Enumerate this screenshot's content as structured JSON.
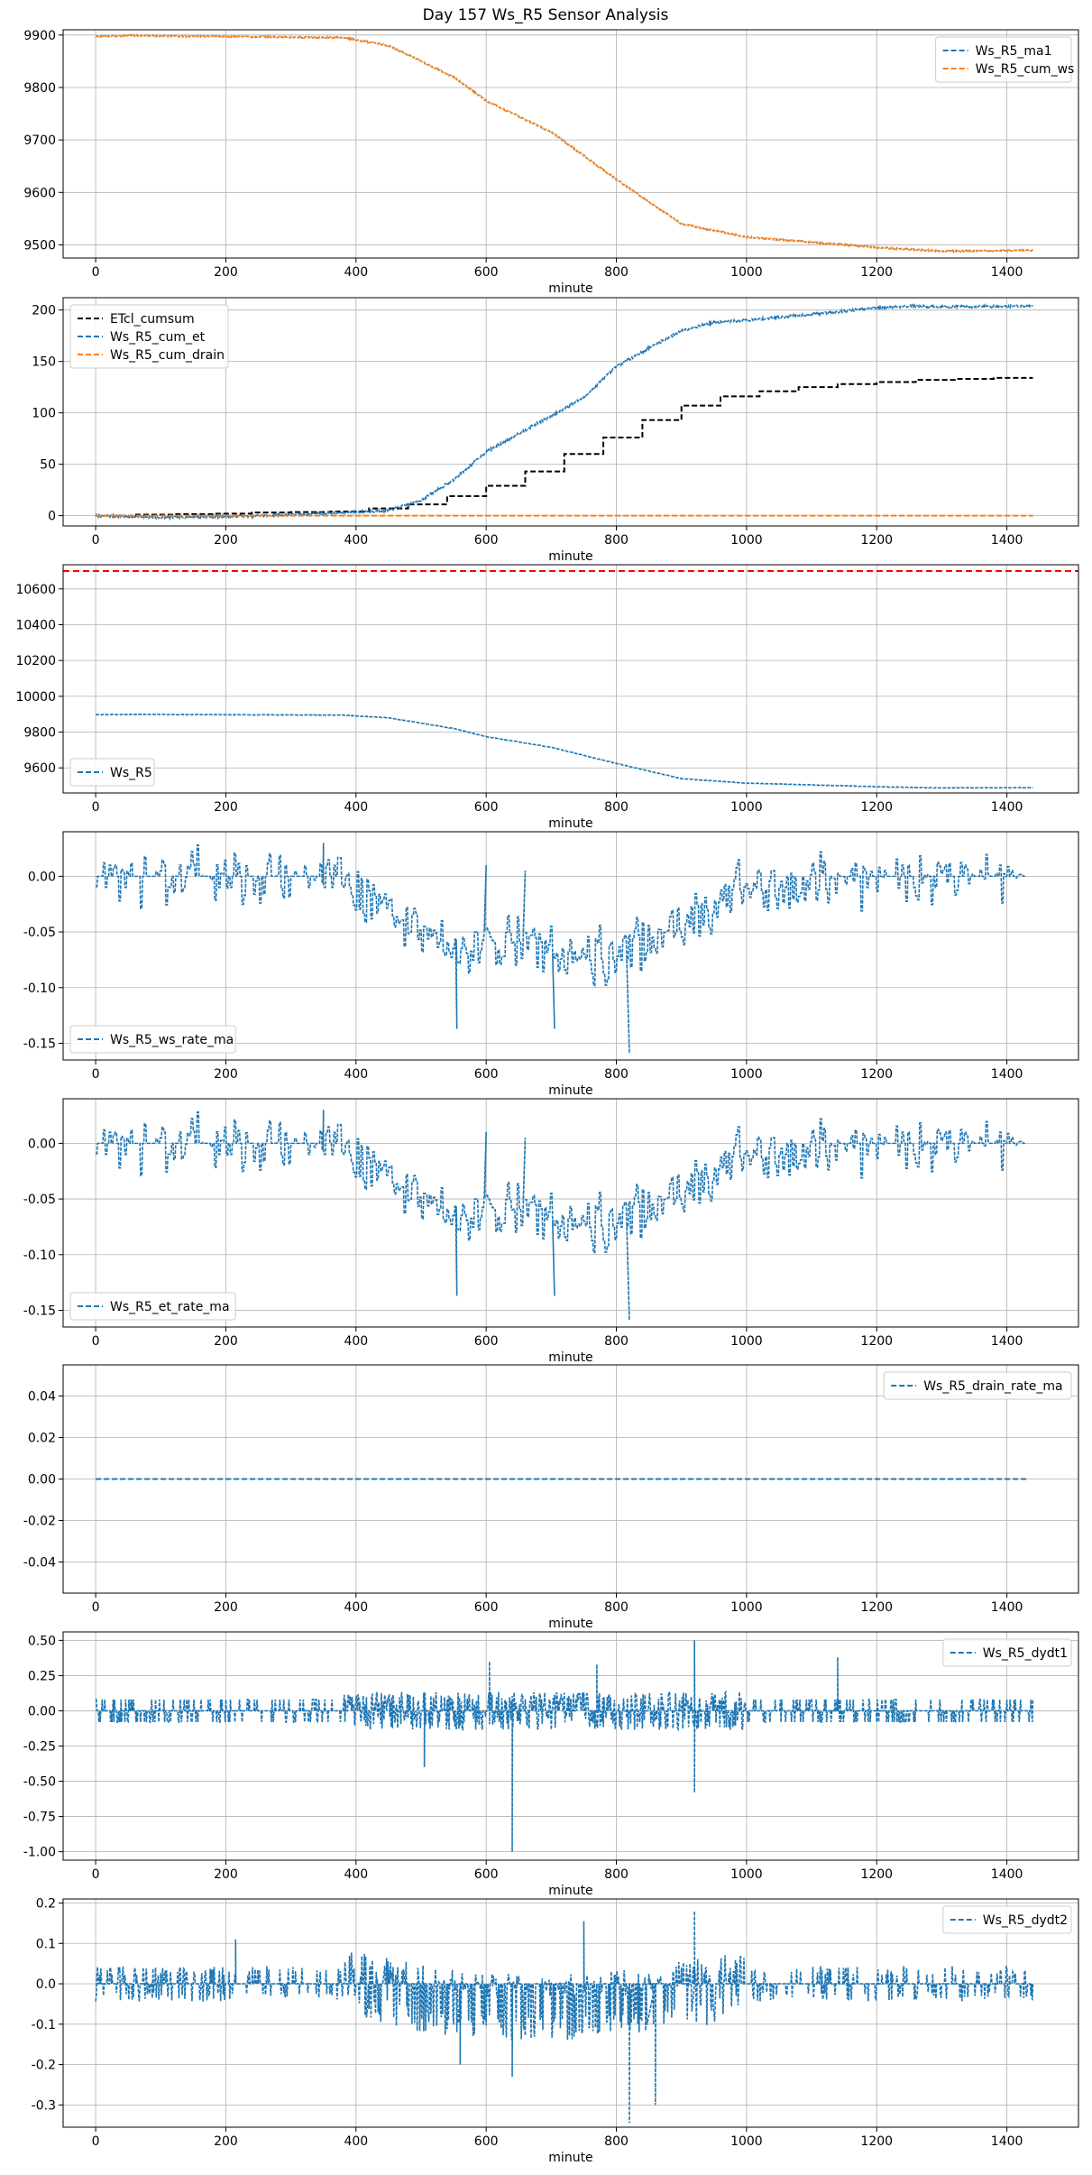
{
  "figure": {
    "title": "Day 157 Ws_R5 Sensor Analysis"
  },
  "colors": {
    "blue": "#1f77b4",
    "orange": "#ff7f0e",
    "black": "#000000",
    "red": "#ff0000",
    "grid": "#b0b0b0"
  },
  "chart_data": [
    {
      "type": "line",
      "xlabel": "minute",
      "ylabel": "",
      "xlim": [
        -50,
        1510
      ],
      "ylim": [
        9475,
        9910
      ],
      "xticks": [
        0,
        200,
        400,
        600,
        800,
        1000,
        1200,
        1400
      ],
      "yticks": [
        9500,
        9600,
        9700,
        9800,
        9900
      ],
      "grid": true,
      "legend": "upper-right",
      "series": [
        {
          "name": "Ws_R5_ma1",
          "color": "#1f77b4",
          "style": "dashed",
          "generator": "ws",
          "x": [
            0,
            50,
            200,
            380,
            450,
            550,
            600,
            700,
            800,
            900,
            1000,
            1100,
            1200,
            1300,
            1440
          ],
          "y": [
            9897,
            9899,
            9897,
            9895,
            9880,
            9820,
            9775,
            9715,
            9625,
            9540,
            9515,
            9505,
            9495,
            9488,
            9490
          ]
        },
        {
          "name": "Ws_R5_cum_ws",
          "color": "#ff7f0e",
          "style": "dashed",
          "generator": "ws",
          "x": [
            0,
            50,
            200,
            380,
            450,
            550,
            600,
            700,
            800,
            900,
            1000,
            1100,
            1200,
            1300,
            1440
          ],
          "y": [
            9897,
            9899,
            9897,
            9895,
            9880,
            9820,
            9775,
            9715,
            9625,
            9540,
            9515,
            9505,
            9495,
            9488,
            9490
          ]
        }
      ]
    },
    {
      "type": "line",
      "xlabel": "minute",
      "ylabel": "",
      "xlim": [
        -50,
        1510
      ],
      "ylim": [
        -10,
        212
      ],
      "xticks": [
        0,
        200,
        400,
        600,
        800,
        1000,
        1200,
        1400
      ],
      "yticks": [
        0,
        50,
        100,
        150,
        200
      ],
      "grid": true,
      "legend": "upper-left",
      "series": [
        {
          "name": "ETcl_cumsum",
          "color": "#000000",
          "style": "dashed",
          "generator": "steps",
          "x": [
            0,
            60,
            120,
            180,
            240,
            300,
            360,
            420,
            480,
            540,
            600,
            660,
            720,
            780,
            840,
            900,
            960,
            1020,
            1080,
            1140,
            1200,
            1260,
            1320,
            1380,
            1440
          ],
          "y": [
            0,
            1,
            1.5,
            2,
            3,
            3.5,
            4,
            7,
            11,
            19,
            29,
            43,
            60,
            76,
            93,
            107,
            116,
            121,
            125,
            128,
            130,
            132,
            133,
            134,
            134
          ]
        },
        {
          "name": "Ws_R5_cum_et",
          "color": "#1f77b4",
          "style": "dashed",
          "generator": "noisy",
          "x": [
            0,
            100,
            250,
            380,
            450,
            500,
            550,
            600,
            650,
            700,
            750,
            800,
            850,
            900,
            950,
            1000,
            1100,
            1200,
            1250,
            1300,
            1440
          ],
          "y": [
            0,
            -2,
            0,
            3,
            5,
            15,
            35,
            62,
            80,
            97,
            115,
            145,
            163,
            180,
            188,
            190,
            196,
            202,
            204,
            203,
            204
          ]
        },
        {
          "name": "Ws_R5_cum_drain",
          "color": "#ff7f0e",
          "style": "dashed",
          "generator": "line",
          "x": [
            0,
            1440
          ],
          "y": [
            0,
            0
          ]
        }
      ]
    },
    {
      "type": "line",
      "xlabel": "minute",
      "ylabel": "",
      "xlim": [
        -50,
        1510
      ],
      "ylim": [
        9460,
        10735
      ],
      "xticks": [
        0,
        200,
        400,
        600,
        800,
        1000,
        1200,
        1400
      ],
      "yticks": [
        9600,
        9800,
        10000,
        10200,
        10400,
        10600
      ],
      "grid": true,
      "legend": "lower-left",
      "hline": {
        "y": 10700,
        "color": "#ff0000",
        "style": "dashed"
      },
      "series": [
        {
          "name": "Ws_R5",
          "color": "#1f77b4",
          "style": "dashed",
          "generator": "ws",
          "x": [
            0,
            50,
            200,
            380,
            450,
            550,
            600,
            700,
            800,
            900,
            1000,
            1100,
            1200,
            1300,
            1440
          ],
          "y": [
            9897,
            9899,
            9897,
            9895,
            9880,
            9820,
            9775,
            9715,
            9625,
            9540,
            9515,
            9505,
            9495,
            9488,
            9490
          ]
        }
      ]
    },
    {
      "type": "line",
      "xlabel": "minute",
      "ylabel": "",
      "xlim": [
        -50,
        1510
      ],
      "ylim": [
        -0.165,
        0.04
      ],
      "xticks": [
        0,
        200,
        400,
        600,
        800,
        1000,
        1200,
        1400
      ],
      "yticks": [
        -0.15,
        -0.1,
        -0.05,
        0.0
      ],
      "yticklabels": [
        "-0.15",
        "-0.10",
        "-0.05",
        "0.00"
      ],
      "grid": true,
      "legend": "lower-left",
      "series": [
        {
          "name": "Ws_R5_ws_rate_ma",
          "color": "#1f77b4",
          "style": "dashed",
          "generator": "rate",
          "seed": 11,
          "x": [
            0,
            360,
            400,
            500,
            560,
            620,
            700,
            800,
            900,
            1000,
            1200,
            1430
          ],
          "y": [
            0,
            0,
            -0.015,
            -0.05,
            -0.07,
            -0.055,
            -0.065,
            -0.075,
            -0.04,
            -0.01,
            -0.002,
            0
          ],
          "noise": 0.022,
          "extremes": [
            [
              350,
              0.03
            ],
            [
              555,
              -0.137
            ],
            [
              600,
              0.01
            ],
            [
              705,
              -0.137
            ],
            [
              820,
              -0.159
            ],
            [
              660,
              0.005
            ]
          ]
        }
      ]
    },
    {
      "type": "line",
      "xlabel": "minute",
      "ylabel": "",
      "xlim": [
        -50,
        1510
      ],
      "ylim": [
        -0.165,
        0.04
      ],
      "xticks": [
        0,
        200,
        400,
        600,
        800,
        1000,
        1200,
        1400
      ],
      "yticks": [
        -0.15,
        -0.1,
        -0.05,
        0.0
      ],
      "yticklabels": [
        "-0.15",
        "-0.10",
        "-0.05",
        "0.00"
      ],
      "grid": true,
      "legend": "lower-left",
      "series": [
        {
          "name": "Ws_R5_et_rate_ma",
          "color": "#1f77b4",
          "style": "dashed",
          "generator": "rate",
          "seed": 11,
          "x": [
            0,
            360,
            400,
            500,
            560,
            620,
            700,
            800,
            900,
            1000,
            1200,
            1430
          ],
          "y": [
            0,
            0,
            -0.015,
            -0.05,
            -0.07,
            -0.055,
            -0.065,
            -0.075,
            -0.04,
            -0.01,
            -0.002,
            0
          ],
          "noise": 0.022,
          "extremes": [
            [
              350,
              0.03
            ],
            [
              555,
              -0.137
            ],
            [
              600,
              0.01
            ],
            [
              705,
              -0.137
            ],
            [
              820,
              -0.159
            ],
            [
              660,
              0.005
            ]
          ]
        }
      ]
    },
    {
      "type": "line",
      "xlabel": "minute",
      "ylabel": "",
      "xlim": [
        -50,
        1510
      ],
      "ylim": [
        -0.055,
        0.055
      ],
      "xticks": [
        0,
        200,
        400,
        600,
        800,
        1000,
        1200,
        1400
      ],
      "yticks": [
        -0.04,
        -0.02,
        0.0,
        0.02,
        0.04
      ],
      "yticklabels": [
        "-0.04",
        "-0.02",
        "0.00",
        "0.02",
        "0.04"
      ],
      "grid": true,
      "legend": "upper-right",
      "series": [
        {
          "name": "Ws_R5_drain_rate_ma",
          "color": "#1f77b4",
          "style": "dashed",
          "generator": "line",
          "x": [
            0,
            1430
          ],
          "y": [
            0,
            0
          ]
        }
      ]
    },
    {
      "type": "line",
      "xlabel": "minute",
      "ylabel": "",
      "xlim": [
        -50,
        1510
      ],
      "ylim": [
        -1.06,
        0.56
      ],
      "xticks": [
        0,
        200,
        400,
        600,
        800,
        1000,
        1200,
        1400
      ],
      "yticks": [
        -1.0,
        -0.75,
        -0.5,
        -0.25,
        0.0,
        0.25,
        0.5
      ],
      "yticklabels": [
        "-1.00",
        "-0.75",
        "-0.50",
        "-0.25",
        "0.00",
        "0.25",
        "0.50"
      ],
      "grid": true,
      "legend": "upper-right",
      "series": [
        {
          "name": "Ws_R5_dydt1",
          "color": "#1f77b4",
          "style": "dashed",
          "generator": "spike",
          "seed": 5,
          "x": [
            0,
            1440
          ],
          "y": [
            0,
            0
          ],
          "amp": 0.08,
          "active": [
            [
              0,
              360,
              0.08
            ],
            [
              360,
              1000,
              0.12
            ],
            [
              1000,
              1440,
              0.08
            ]
          ],
          "extremes": [
            [
              640,
              -1.0
            ],
            [
              920,
              0.5
            ],
            [
              605,
              0.35
            ],
            [
              920,
              -0.58
            ],
            [
              505,
              -0.4
            ],
            [
              1140,
              0.38
            ],
            [
              770,
              0.33
            ]
          ]
        }
      ]
    },
    {
      "type": "line",
      "xlabel": "minute",
      "ylabel": "",
      "xlim": [
        -50,
        1510
      ],
      "ylim": [
        -0.355,
        0.21
      ],
      "xticks": [
        0,
        200,
        400,
        600,
        800,
        1000,
        1200,
        1400
      ],
      "yticks": [
        -0.3,
        -0.2,
        -0.1,
        0.0,
        0.1,
        0.2
      ],
      "yticklabels": [
        "-0.3",
        "-0.2",
        "-0.1",
        "0.0",
        "0.1",
        "0.2"
      ],
      "grid": true,
      "legend": "upper-right",
      "series": [
        {
          "name": "Ws_R5_dydt2",
          "color": "#1f77b4",
          "style": "dashed",
          "generator": "spike2",
          "seed": 9,
          "x": [
            0,
            1440
          ],
          "y": [
            0,
            0
          ],
          "amp": 0.04,
          "extremes": [
            [
              820,
              -0.345
            ],
            [
              920,
              0.18
            ],
            [
              750,
              0.155
            ],
            [
              215,
              0.11
            ],
            [
              640,
              -0.23
            ],
            [
              860,
              -0.3
            ],
            [
              560,
              -0.2
            ]
          ]
        }
      ]
    }
  ]
}
